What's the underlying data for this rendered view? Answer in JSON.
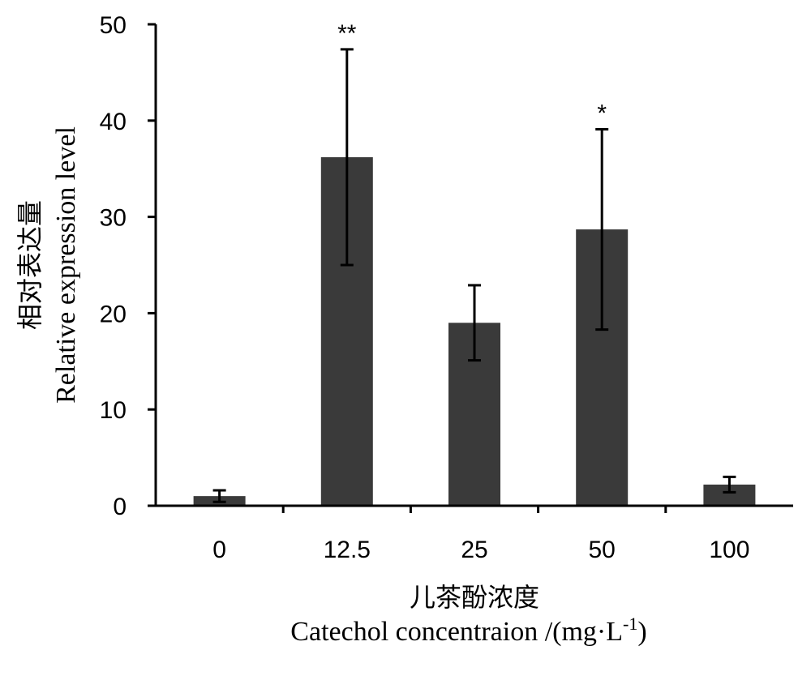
{
  "chart_data": {
    "type": "bar",
    "categories": [
      "0",
      "12.5",
      "25",
      "50",
      "100"
    ],
    "values": [
      1.0,
      36.2,
      19.0,
      28.7,
      2.2
    ],
    "error": [
      0.6,
      11.2,
      3.9,
      10.4,
      0.8
    ],
    "significance": [
      "",
      "**",
      "",
      "*",
      ""
    ],
    "ylim": [
      0,
      50
    ],
    "yticks": [
      "0",
      "10",
      "20",
      "30",
      "40",
      "50"
    ],
    "ylabel_cn": "相对表达量",
    "ylabel_en": "Relative expression level",
    "xlabel_cn": "儿茶酚浓度",
    "xlabel_en": "Catechol concentraion /(mg·L",
    "xlabel_sup": "-1",
    "xlabel_close": ")",
    "bar_color": "#3a3a3a",
    "grid": false
  }
}
